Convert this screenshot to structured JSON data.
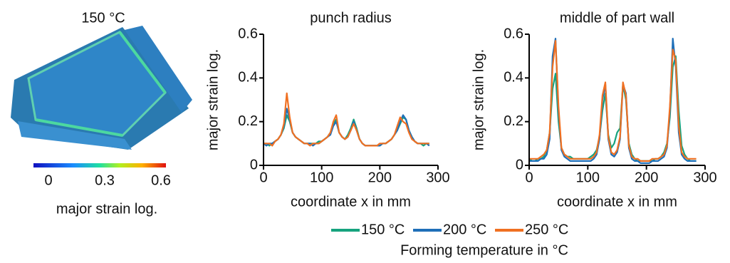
{
  "image_panel": {
    "title": "150 °C",
    "colorbar": {
      "label": "major strain log.",
      "lim": [
        0,
        0.6
      ],
      "ticks": [
        0,
        0.3,
        0.6
      ]
    }
  },
  "legend_title": "Forming temperature in °C",
  "chart_data": [
    {
      "type": "line",
      "title": "punch radius",
      "xlabel": "coordinate x in mm",
      "ylabel": "major strain log.",
      "xlim": [
        0,
        300
      ],
      "xticks": [
        0,
        100,
        200,
        300
      ],
      "ylim": [
        0,
        0.6
      ],
      "yticks": [
        0,
        0.2,
        0.4,
        0.6
      ],
      "x": [
        0,
        5,
        10,
        15,
        20,
        25,
        30,
        35,
        40,
        45,
        50,
        55,
        60,
        65,
        70,
        75,
        80,
        85,
        90,
        95,
        100,
        105,
        110,
        115,
        120,
        125,
        130,
        135,
        140,
        145,
        150,
        155,
        160,
        165,
        170,
        175,
        180,
        185,
        190,
        195,
        200,
        205,
        210,
        215,
        220,
        225,
        230,
        235,
        240,
        245,
        250,
        255,
        260,
        265,
        270,
        275,
        280,
        285
      ],
      "series": [
        {
          "name": "150 °C",
          "color": "#16a37e",
          "values": [
            0.1,
            0.1,
            0.09,
            0.1,
            0.11,
            0.12,
            0.14,
            0.17,
            0.23,
            0.2,
            0.15,
            0.13,
            0.12,
            0.11,
            0.1,
            0.1,
            0.1,
            0.1,
            0.1,
            0.11,
            0.11,
            0.12,
            0.13,
            0.15,
            0.19,
            0.21,
            0.15,
            0.13,
            0.12,
            0.14,
            0.17,
            0.21,
            0.17,
            0.12,
            0.1,
            0.09,
            0.09,
            0.09,
            0.09,
            0.09,
            0.09,
            0.1,
            0.1,
            0.11,
            0.12,
            0.14,
            0.16,
            0.19,
            0.22,
            0.21,
            0.16,
            0.13,
            0.11,
            0.1,
            0.1,
            0.09,
            0.1,
            0.1
          ]
        },
        {
          "name": "200 °C",
          "color": "#1f6fb8",
          "values": [
            0.1,
            0.09,
            0.1,
            0.1,
            0.11,
            0.12,
            0.14,
            0.18,
            0.26,
            0.21,
            0.15,
            0.13,
            0.12,
            0.11,
            0.1,
            0.1,
            0.1,
            0.09,
            0.1,
            0.1,
            0.11,
            0.12,
            0.13,
            0.14,
            0.18,
            0.2,
            0.15,
            0.13,
            0.12,
            0.13,
            0.16,
            0.2,
            0.16,
            0.12,
            0.1,
            0.09,
            0.09,
            0.09,
            0.09,
            0.09,
            0.09,
            0.1,
            0.1,
            0.11,
            0.12,
            0.14,
            0.16,
            0.2,
            0.23,
            0.21,
            0.16,
            0.13,
            0.11,
            0.1,
            0.1,
            0.1,
            0.1,
            0.09
          ]
        },
        {
          "name": "250 °C",
          "color": "#f07022",
          "values": [
            0.1,
            0.1,
            0.1,
            0.09,
            0.11,
            0.12,
            0.14,
            0.19,
            0.33,
            0.22,
            0.15,
            0.13,
            0.12,
            0.11,
            0.1,
            0.1,
            0.09,
            0.1,
            0.1,
            0.1,
            0.11,
            0.12,
            0.13,
            0.15,
            0.2,
            0.23,
            0.15,
            0.13,
            0.12,
            0.13,
            0.16,
            0.19,
            0.16,
            0.12,
            0.1,
            0.09,
            0.09,
            0.09,
            0.09,
            0.09,
            0.1,
            0.1,
            0.1,
            0.11,
            0.12,
            0.14,
            0.18,
            0.22,
            0.2,
            0.19,
            0.15,
            0.12,
            0.11,
            0.1,
            0.1,
            0.1,
            0.1,
            0.1
          ]
        }
      ]
    },
    {
      "type": "line",
      "title": "middle of part wall",
      "xlabel": "coordinate x in mm",
      "ylabel": "major strain log.",
      "xlim": [
        0,
        300
      ],
      "xticks": [
        0,
        100,
        200,
        300
      ],
      "ylim": [
        0,
        0.6
      ],
      "yticks": [
        0,
        0.2,
        0.4,
        0.6
      ],
      "x": [
        0,
        5,
        10,
        15,
        20,
        25,
        30,
        35,
        40,
        45,
        50,
        55,
        60,
        65,
        70,
        75,
        80,
        85,
        90,
        95,
        100,
        105,
        110,
        115,
        120,
        125,
        130,
        135,
        140,
        145,
        150,
        155,
        160,
        165,
        170,
        175,
        180,
        185,
        190,
        195,
        200,
        205,
        210,
        215,
        220,
        225,
        230,
        235,
        240,
        245,
        250,
        255,
        260,
        265,
        270,
        275,
        280,
        285
      ],
      "series": [
        {
          "name": "150 °C",
          "color": "#16a37e",
          "values": [
            0.03,
            0.02,
            0.02,
            0.03,
            0.03,
            0.04,
            0.07,
            0.15,
            0.35,
            0.42,
            0.2,
            0.08,
            0.05,
            0.04,
            0.04,
            0.03,
            0.03,
            0.03,
            0.03,
            0.03,
            0.03,
            0.04,
            0.05,
            0.07,
            0.13,
            0.25,
            0.33,
            0.14,
            0.08,
            0.1,
            0.15,
            0.17,
            0.37,
            0.3,
            0.1,
            0.05,
            0.03,
            0.02,
            0.02,
            0.02,
            0.02,
            0.02,
            0.02,
            0.03,
            0.03,
            0.04,
            0.06,
            0.1,
            0.22,
            0.45,
            0.5,
            0.25,
            0.09,
            0.05,
            0.03,
            0.02,
            0.02,
            0.02
          ]
        },
        {
          "name": "200 °C",
          "color": "#1f6fb8",
          "values": [
            0.02,
            0.02,
            0.02,
            0.02,
            0.03,
            0.03,
            0.05,
            0.12,
            0.5,
            0.58,
            0.25,
            0.07,
            0.04,
            0.03,
            0.02,
            0.02,
            0.02,
            0.02,
            0.02,
            0.02,
            0.02,
            0.02,
            0.03,
            0.05,
            0.12,
            0.3,
            0.37,
            0.12,
            0.05,
            0.04,
            0.06,
            0.12,
            0.37,
            0.33,
            0.08,
            0.03,
            0.02,
            0.02,
            0.01,
            0.01,
            0.01,
            0.01,
            0.02,
            0.02,
            0.02,
            0.03,
            0.04,
            0.08,
            0.25,
            0.58,
            0.45,
            0.15,
            0.05,
            0.03,
            0.02,
            0.02,
            0.02,
            0.02
          ]
        },
        {
          "name": "250 °C",
          "color": "#f07022",
          "values": [
            0.03,
            0.03,
            0.03,
            0.03,
            0.04,
            0.05,
            0.07,
            0.15,
            0.45,
            0.57,
            0.27,
            0.08,
            0.05,
            0.04,
            0.03,
            0.03,
            0.03,
            0.03,
            0.03,
            0.03,
            0.03,
            0.03,
            0.04,
            0.06,
            0.14,
            0.32,
            0.38,
            0.13,
            0.06,
            0.05,
            0.07,
            0.13,
            0.38,
            0.32,
            0.09,
            0.04,
            0.03,
            0.03,
            0.02,
            0.02,
            0.02,
            0.02,
            0.03,
            0.03,
            0.03,
            0.04,
            0.05,
            0.09,
            0.27,
            0.53,
            0.48,
            0.18,
            0.06,
            0.04,
            0.03,
            0.03,
            0.03,
            0.03
          ]
        }
      ]
    }
  ]
}
